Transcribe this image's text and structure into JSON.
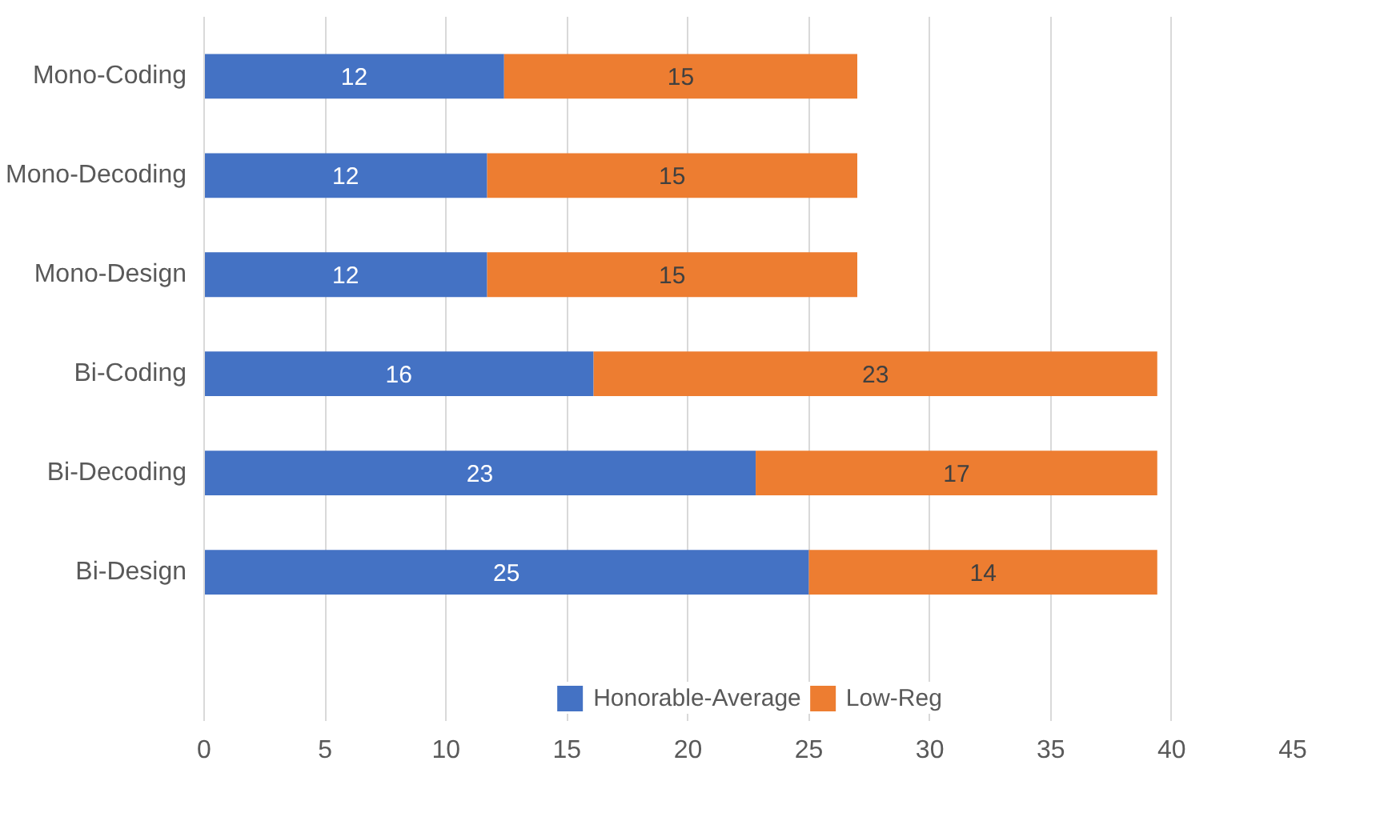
{
  "chart_data": {
    "type": "bar",
    "orientation": "horizontal",
    "stacked": true,
    "categories": [
      "Mono-Coding",
      "Mono-Decoding",
      "Mono-Design",
      "Bi-Coding",
      "Bi-Decoding",
      "Bi-Design"
    ],
    "series": [
      {
        "name": "Honorable-Average",
        "color": "#4472c4",
        "values": [
          12.4,
          11.7,
          11.7,
          16.1,
          22.8,
          25.0
        ],
        "value_labels": [
          "12",
          "12",
          "12",
          "16",
          "23",
          "25"
        ]
      },
      {
        "name": "Low-Reg",
        "color": "#ed7d31",
        "values": [
          14.6,
          15.3,
          15.3,
          23.3,
          16.6,
          14.4
        ],
        "value_labels": [
          "15",
          "15",
          "15",
          "23",
          "17",
          "14"
        ]
      }
    ],
    "xlim": [
      0,
      45
    ],
    "xticks": [
      0,
      5,
      10,
      15,
      20,
      25,
      30,
      35,
      40,
      45
    ],
    "grid": "x",
    "legend": "bottom"
  }
}
